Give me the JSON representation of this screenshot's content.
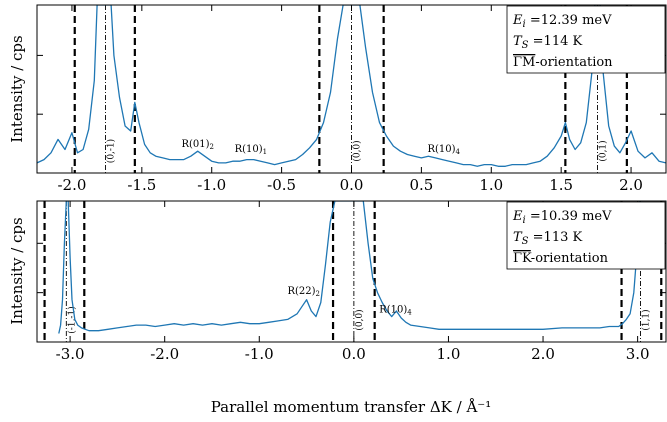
{
  "figure": {
    "xlabel": "Parallel momentum transfer ΔK / Å⁻¹",
    "ylabel": "Intensity / cps"
  },
  "chart_data": [
    {
      "id": "top",
      "type": "line",
      "xlim": [
        -2.25,
        2.25
      ],
      "ylim": [
        0,
        1.0
      ],
      "grid": false,
      "xticks": [
        -2.0,
        -1.5,
        -1.0,
        -0.5,
        0.0,
        0.5,
        1.0,
        1.5,
        2.0
      ],
      "xticklabels": [
        "-2.0",
        "-1.5",
        "-1.0",
        "-0.5",
        "0.0",
        "0.5",
        "1.0",
        "1.5",
        "2.0"
      ],
      "ylabel": "Intensity / cps",
      "legend": {
        "position": "top-right",
        "lines": [
          "E_i =12.39 meV",
          "T_S =114 K",
          "ΓM-orientation"
        ]
      },
      "dashed_lines": [
        -1.98,
        -1.55,
        -0.23,
        0.23,
        1.53,
        1.97
      ],
      "dashdot_lines": [
        {
          "x": -1.76,
          "label": "(0,-1)"
        },
        {
          "x": 0.0,
          "label": "(0,0)"
        },
        {
          "x": 1.76,
          "label": "(0,1)"
        }
      ],
      "annotations": [
        {
          "text": "R(01)₂",
          "x": -1.1,
          "y": 0.155
        },
        {
          "text": "R(10)₁",
          "x": -0.72,
          "y": 0.125
        },
        {
          "text": "R(10)₄",
          "x": 0.66,
          "y": 0.125
        }
      ],
      "series": [
        {
          "color": "#1f77b4",
          "x": [
            -2.25,
            -2.2,
            -2.15,
            -2.1,
            -2.05,
            -2.0,
            -1.96,
            -1.92,
            -1.88,
            -1.84,
            -1.82,
            -1.8,
            -1.78,
            -1.76,
            -1.74,
            -1.72,
            -1.7,
            -1.66,
            -1.62,
            -1.58,
            -1.55,
            -1.52,
            -1.48,
            -1.44,
            -1.4,
            -1.35,
            -1.3,
            -1.25,
            -1.2,
            -1.15,
            -1.1,
            -1.05,
            -1.0,
            -0.95,
            -0.9,
            -0.85,
            -0.8,
            -0.75,
            -0.7,
            -0.65,
            -0.6,
            -0.55,
            -0.5,
            -0.45,
            -0.4,
            -0.35,
            -0.3,
            -0.25,
            -0.2,
            -0.15,
            -0.1,
            -0.06,
            -0.03,
            0.0,
            0.03,
            0.06,
            0.1,
            0.15,
            0.2,
            0.25,
            0.3,
            0.35,
            0.4,
            0.45,
            0.5,
            0.55,
            0.6,
            0.65,
            0.7,
            0.75,
            0.8,
            0.85,
            0.9,
            0.95,
            1.0,
            1.05,
            1.1,
            1.15,
            1.2,
            1.25,
            1.3,
            1.35,
            1.4,
            1.45,
            1.5,
            1.53,
            1.56,
            1.6,
            1.64,
            1.68,
            1.72,
            1.74,
            1.76,
            1.78,
            1.8,
            1.84,
            1.88,
            1.92,
            1.96,
            2.0,
            2.05,
            2.1,
            2.15,
            2.2,
            2.25
          ],
          "y": [
            0.06,
            0.08,
            0.12,
            0.2,
            0.14,
            0.24,
            0.12,
            0.14,
            0.26,
            0.55,
            1.0,
            1.0,
            1.0,
            1.0,
            1.0,
            1.0,
            0.7,
            0.45,
            0.28,
            0.25,
            0.42,
            0.3,
            0.17,
            0.12,
            0.1,
            0.09,
            0.08,
            0.08,
            0.08,
            0.1,
            0.13,
            0.1,
            0.07,
            0.06,
            0.06,
            0.07,
            0.07,
            0.08,
            0.08,
            0.07,
            0.06,
            0.05,
            0.06,
            0.07,
            0.08,
            0.11,
            0.15,
            0.2,
            0.3,
            0.48,
            0.8,
            1.0,
            1.0,
            1.0,
            1.0,
            1.0,
            0.75,
            0.48,
            0.3,
            0.22,
            0.16,
            0.13,
            0.11,
            0.1,
            0.09,
            0.1,
            0.09,
            0.08,
            0.07,
            0.06,
            0.05,
            0.05,
            0.04,
            0.05,
            0.05,
            0.04,
            0.04,
            0.05,
            0.05,
            0.05,
            0.06,
            0.07,
            0.1,
            0.15,
            0.22,
            0.3,
            0.2,
            0.14,
            0.18,
            0.3,
            0.6,
            1.0,
            1.0,
            1.0,
            0.6,
            0.28,
            0.16,
            0.12,
            0.18,
            0.25,
            0.13,
            0.09,
            0.12,
            0.07,
            0.06
          ]
        }
      ]
    },
    {
      "id": "bottom",
      "type": "line",
      "xlim": [
        -3.35,
        3.3
      ],
      "ylim": [
        0,
        1.0
      ],
      "grid": false,
      "xticks": [
        -3.0,
        -2.0,
        -1.0,
        0.0,
        1.0,
        2.0,
        3.0
      ],
      "xticklabels": [
        "-3.0",
        "-2.0",
        "-1.0",
        "0.0",
        "1.0",
        "2.0",
        "3.0"
      ],
      "ylabel": "Intensity / cps",
      "legend": {
        "position": "top-right",
        "lines": [
          "E_i =10.39 meV",
          "T_S =113 K",
          "ΓK-orientation"
        ]
      },
      "dashed_lines": [
        -3.27,
        -2.85,
        -0.22,
        0.22,
        2.83,
        3.25
      ],
      "dashdot_lines": [
        {
          "x": -3.04,
          "label": "(-1,-1)"
        },
        {
          "x": 0.0,
          "label": "(0,0)"
        },
        {
          "x": 3.03,
          "label": "(1,1)"
        }
      ],
      "annotations": [
        {
          "text": "R(22)₂",
          "x": -0.53,
          "y": 0.34
        },
        {
          "text": "R(10)₄",
          "x": 0.44,
          "y": 0.21
        }
      ],
      "series": [
        {
          "color": "#1f77b4",
          "x": [
            -3.12,
            -3.1,
            -3.08,
            -3.06,
            -3.04,
            -3.02,
            -3.0,
            -2.98,
            -2.95,
            -2.92,
            -2.88,
            -2.84,
            -2.8,
            -2.7,
            -2.6,
            -2.5,
            -2.4,
            -2.3,
            -2.2,
            -2.1,
            -2.0,
            -1.9,
            -1.8,
            -1.7,
            -1.6,
            -1.5,
            -1.4,
            -1.3,
            -1.2,
            -1.1,
            -1.0,
            -0.9,
            -0.8,
            -0.7,
            -0.6,
            -0.55,
            -0.5,
            -0.45,
            -0.4,
            -0.35,
            -0.3,
            -0.25,
            -0.2,
            -0.15,
            -0.1,
            -0.06,
            -0.03,
            0.0,
            0.03,
            0.06,
            0.1,
            0.15,
            0.2,
            0.25,
            0.3,
            0.35,
            0.4,
            0.45,
            0.5,
            0.55,
            0.6,
            0.7,
            0.8,
            0.9,
            1.0,
            1.2,
            1.4,
            1.6,
            1.8,
            2.0,
            2.2,
            2.4,
            2.6,
            2.7,
            2.8,
            2.84,
            2.88,
            2.92,
            2.96,
            3.0,
            3.02,
            3.04,
            3.06
          ],
          "y": [
            0.06,
            0.12,
            0.3,
            0.7,
            1.0,
            1.0,
            0.6,
            0.3,
            0.16,
            0.12,
            0.1,
            0.09,
            0.08,
            0.08,
            0.09,
            0.1,
            0.11,
            0.12,
            0.12,
            0.11,
            0.12,
            0.13,
            0.12,
            0.13,
            0.12,
            0.13,
            0.12,
            0.13,
            0.14,
            0.13,
            0.13,
            0.14,
            0.15,
            0.16,
            0.2,
            0.25,
            0.3,
            0.22,
            0.18,
            0.28,
            0.55,
            0.85,
            1.0,
            1.0,
            1.0,
            1.0,
            1.0,
            1.0,
            1.0,
            1.0,
            1.0,
            0.7,
            0.45,
            0.35,
            0.28,
            0.22,
            0.18,
            0.22,
            0.17,
            0.14,
            0.12,
            0.11,
            0.1,
            0.09,
            0.09,
            0.09,
            0.09,
            0.09,
            0.09,
            0.09,
            0.1,
            0.1,
            0.1,
            0.11,
            0.11,
            0.13,
            0.16,
            0.2,
            0.35,
            0.7,
            1.0,
            1.0,
            1.0
          ]
        }
      ]
    }
  ]
}
